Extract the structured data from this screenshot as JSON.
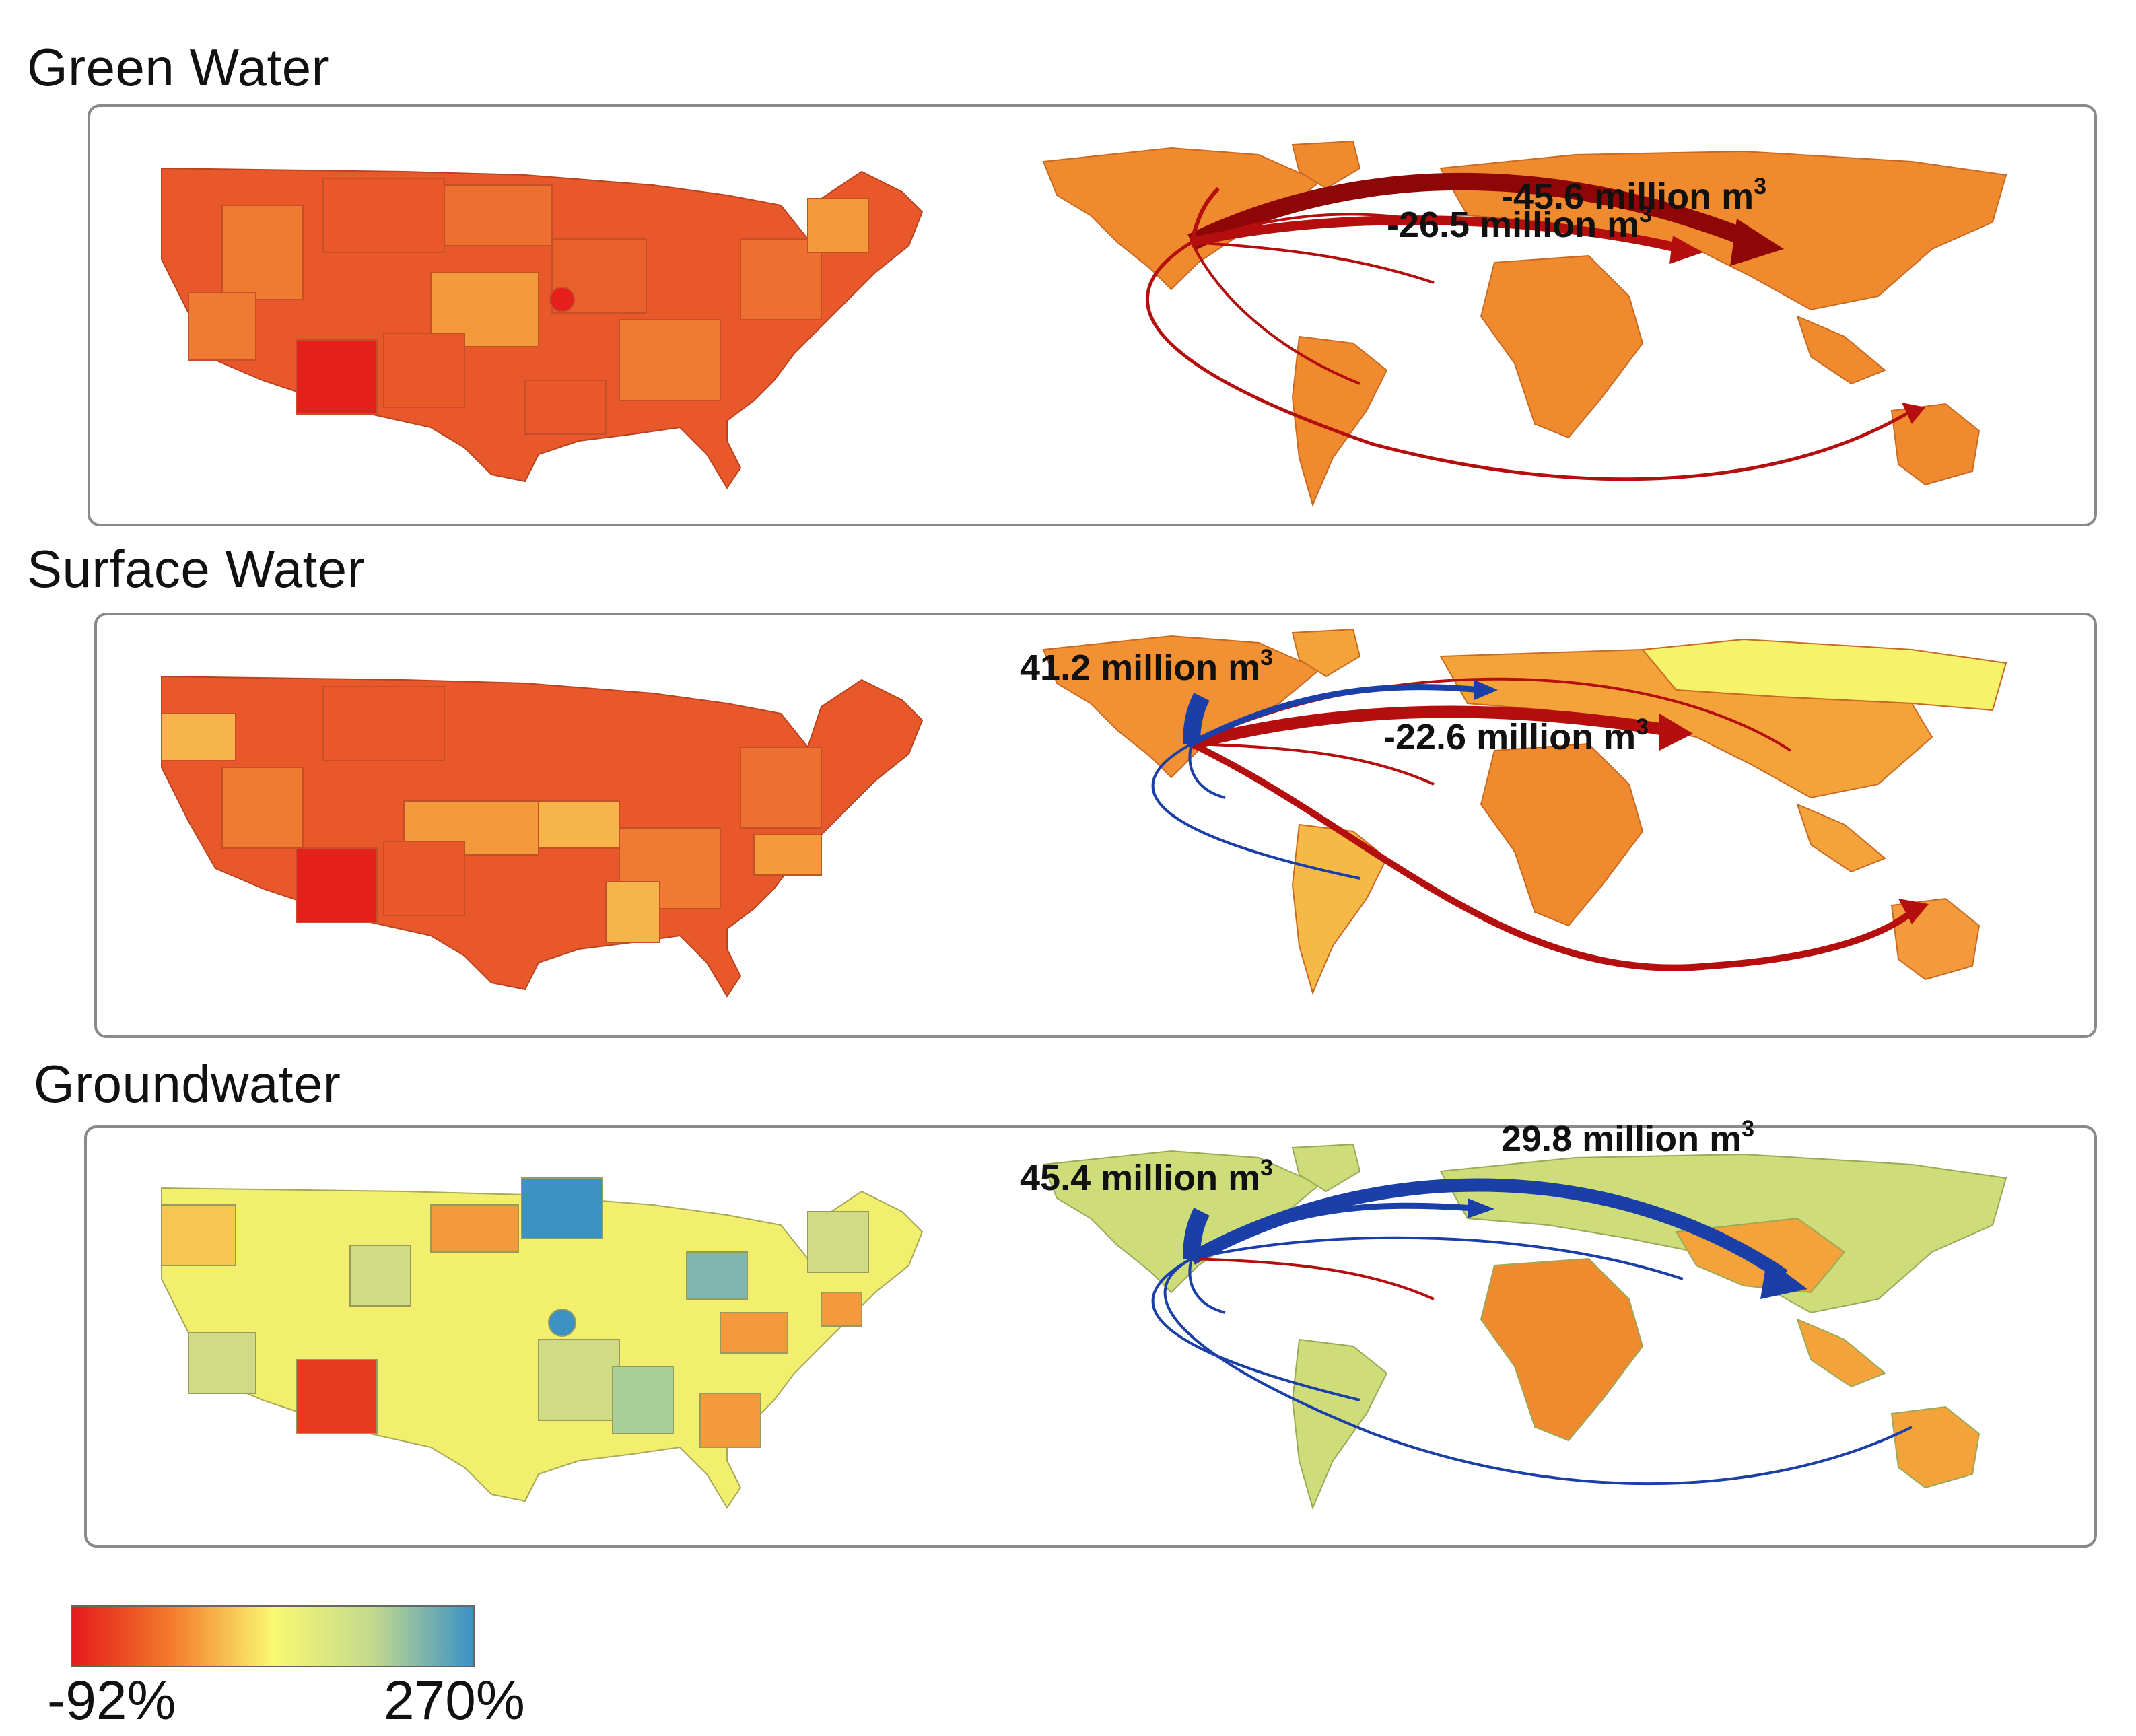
{
  "panels": [
    {
      "title": "Green Water",
      "us_shades": {
        "base": "#e8582b",
        "alt": "#ef7a32",
        "light": "#f39a3c",
        "hot": "#e41f1c"
      },
      "world_land": "#f08a2e",
      "labels": [
        {
          "value": "-45.6 million m",
          "sup": "3"
        },
        {
          "value": "-26.5 million m",
          "sup": "3"
        }
      ]
    },
    {
      "title": "Surface Water",
      "us_shades": {
        "base": "#e8582b",
        "alt": "#f07a31",
        "light": "#f6b44a",
        "hot": "#e41f1c"
      },
      "world_land": "#f3a33a",
      "labels": [
        {
          "value": "41.2 million m",
          "sup": "3"
        },
        {
          "value": "-22.6 million m",
          "sup": "3"
        }
      ]
    },
    {
      "title": "Groundwater",
      "us_shades": {
        "base": "#f2ee6e",
        "alt": "#cfdb85",
        "light": "#f7c552",
        "hot": "#e83a1f",
        "blue": "#3d92c4"
      },
      "world_land": "#cfdc7a",
      "labels": [
        {
          "value": "45.4 million m",
          "sup": "3"
        },
        {
          "value": "29.8 million m",
          "sup": "3"
        }
      ]
    }
  ],
  "legend": {
    "min_label": "-92%",
    "max_label": "270%",
    "gradient": [
      "#e41a1c",
      "#f47c2c",
      "#f9f871",
      "#c3d98e",
      "#3a92c6"
    ]
  },
  "colors": {
    "decline": "#b50e0e",
    "decline_dark": "#8f0606",
    "increase": "#1b3fa8"
  }
}
